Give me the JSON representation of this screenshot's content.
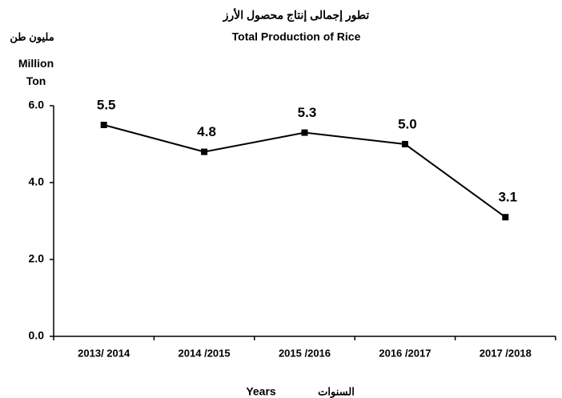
{
  "chart_data": {
    "type": "line",
    "title": "تطور إجمالى إنتاج محصول الأرز",
    "subtitle": "Total Production of Rice",
    "y_label_ar": "مليون طن",
    "y_label": "Million Ton",
    "x_label": "Years",
    "x_label_ar": "السنوات",
    "categories": [
      "2013/ 2014",
      "2014 /2015",
      "2015 /2016",
      "2016 /2017",
      "2017 /2018"
    ],
    "series": [
      {
        "name": "Total Production of Rice",
        "color": "#000000",
        "values": [
          5.5,
          4.8,
          5.3,
          5.0,
          3.1
        ],
        "value_labels": [
          "5.5",
          "4.8",
          "5.3",
          "5.0",
          "3.1"
        ]
      }
    ],
    "ylim": [
      0,
      6
    ],
    "yticks": [
      {
        "value": 0,
        "label": "0.0"
      },
      {
        "value": 2,
        "label": "2.0"
      },
      {
        "value": 4,
        "label": "4.0"
      },
      {
        "value": 6,
        "label": "6.0"
      }
    ],
    "grid": false
  }
}
